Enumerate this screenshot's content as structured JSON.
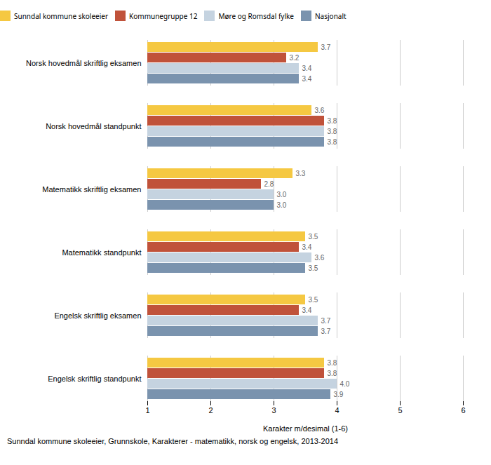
{
  "chart_data": {
    "type": "bar",
    "orientation": "horizontal",
    "categories": [
      "Norsk hovedmål skriftlig eksamen",
      "Norsk hovedmål standpunkt",
      "Matematikk skriftlig eksamen",
      "Matematikk standpunkt",
      "Engelsk skriftlig eksamen",
      "Engelsk skriftlig standpunkt"
    ],
    "series": [
      {
        "name": "Sunndal kommune skoleeier",
        "color": "#F5C842",
        "values": [
          3.7,
          3.6,
          3.3,
          3.5,
          3.5,
          3.8
        ],
        "value_labels": [
          "3.7",
          "3.6",
          "3.3",
          "3.5",
          "3.5",
          "3.8"
        ]
      },
      {
        "name": "Kommunegruppe 12",
        "color": "#C0523A",
        "values": [
          3.2,
          3.8,
          2.8,
          3.4,
          3.4,
          3.8
        ],
        "value_labels": [
          "3.2",
          "3.8",
          "2.8",
          "3.4",
          "3.4",
          "3.8"
        ]
      },
      {
        "name": "Møre og Romsdal fylke",
        "color": "#C5D3E0",
        "values": [
          3.4,
          3.8,
          3.0,
          3.6,
          3.7,
          4.0
        ],
        "value_labels": [
          "3.4",
          "3.8",
          "3.0",
          "3.6",
          "3.7",
          "4.0"
        ]
      },
      {
        "name": "Nasjonalt",
        "color": "#7A93AE",
        "values": [
          3.4,
          3.8,
          3.0,
          3.5,
          3.7,
          3.9
        ],
        "value_labels": [
          "3.4",
          "3.8",
          "3.0",
          "3.5",
          "3.7",
          "3.9"
        ]
      }
    ],
    "xlabel": "Karakter m/desimal (1-6)",
    "xlim": [
      1,
      6
    ],
    "xticks": [
      1,
      2,
      3,
      4,
      5,
      6
    ],
    "grid": true,
    "legend": "top",
    "data_labels": true,
    "caption": "Sunndal kommune skoleeier, Grunnskole, Karakterer - matematikk, norsk og engelsk, 2013-2014"
  }
}
